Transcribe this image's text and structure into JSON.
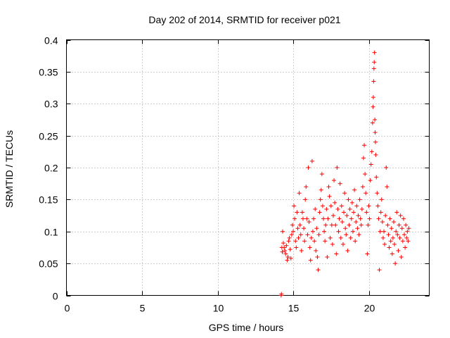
{
  "chart_data": {
    "type": "scatter",
    "title": "Day 202 of 2014, SRMTID for receiver p021",
    "xlabel": "GPS time / hours",
    "ylabel": "SRMTID / TECUs",
    "xlim": [
      0,
      24
    ],
    "ylim": [
      0,
      0.4
    ],
    "xticks": [
      0,
      5,
      10,
      15,
      20
    ],
    "xtick_labels": [
      "0",
      "5",
      "10",
      "15",
      "20"
    ],
    "yticks": [
      0,
      0.05,
      0.1,
      0.15,
      0.2,
      0.25,
      0.3,
      0.35,
      0.4
    ],
    "ytick_labels": [
      "0",
      "0.05",
      "0.1",
      "0.15",
      "0.2",
      "0.25",
      "0.3",
      "0.35",
      "0.4"
    ],
    "grid": true,
    "marker": "+",
    "series": [
      {
        "name": "p021",
        "color": "#ff0000",
        "points": [
          [
            14.2,
            0.0
          ],
          [
            14.22,
            0.002
          ],
          [
            14.25,
            0.075
          ],
          [
            14.28,
            0.068
          ],
          [
            14.3,
            0.1
          ],
          [
            14.35,
            0.082
          ],
          [
            14.4,
            0.075
          ],
          [
            14.45,
            0.07
          ],
          [
            14.5,
            0.065
          ],
          [
            14.55,
            0.078
          ],
          [
            14.6,
            0.055
          ],
          [
            14.65,
            0.06
          ],
          [
            14.7,
            0.085
          ],
          [
            14.75,
            0.09
          ],
          [
            14.8,
            0.072
          ],
          [
            14.85,
            0.058
          ],
          [
            14.9,
            0.095
          ],
          [
            14.95,
            0.11
          ],
          [
            15.0,
            0.1
          ],
          [
            15.05,
            0.14
          ],
          [
            15.1,
            0.12
          ],
          [
            15.15,
            0.085
          ],
          [
            15.2,
            0.075
          ],
          [
            15.25,
            0.13
          ],
          [
            15.3,
            0.105
          ],
          [
            15.35,
            0.09
          ],
          [
            15.4,
            0.16
          ],
          [
            15.45,
            0.11
          ],
          [
            15.5,
            0.095
          ],
          [
            15.55,
            0.07
          ],
          [
            15.6,
            0.13
          ],
          [
            15.65,
            0.12
          ],
          [
            15.7,
            0.105
          ],
          [
            15.75,
            0.085
          ],
          [
            15.8,
            0.15
          ],
          [
            15.85,
            0.17
          ],
          [
            15.9,
            0.12
          ],
          [
            15.95,
            0.095
          ],
          [
            16.0,
            0.2
          ],
          [
            16.05,
            0.115
          ],
          [
            16.1,
            0.075
          ],
          [
            16.15,
            0.055
          ],
          [
            16.2,
            0.09
          ],
          [
            16.25,
            0.21
          ],
          [
            16.3,
            0.1
          ],
          [
            16.35,
            0.12
          ],
          [
            16.4,
            0.085
          ],
          [
            16.45,
            0.135
          ],
          [
            16.5,
            0.07
          ],
          [
            16.55,
            0.105
          ],
          [
            16.6,
            0.06
          ],
          [
            16.65,
            0.04
          ],
          [
            16.7,
            0.095
          ],
          [
            16.75,
            0.13
          ],
          [
            16.8,
            0.15
          ],
          [
            16.85,
            0.165
          ],
          [
            16.9,
            0.19
          ],
          [
            16.95,
            0.14
          ],
          [
            17.0,
            0.12
          ],
          [
            17.05,
            0.1
          ],
          [
            17.1,
            0.085
          ],
          [
            17.15,
            0.11
          ],
          [
            17.2,
            0.135
          ],
          [
            17.25,
            0.06
          ],
          [
            17.3,
            0.12
          ],
          [
            17.35,
            0.17
          ],
          [
            17.4,
            0.155
          ],
          [
            17.45,
            0.09
          ],
          [
            17.5,
            0.14
          ],
          [
            17.55,
            0.11
          ],
          [
            17.6,
            0.08
          ],
          [
            17.65,
            0.125
          ],
          [
            17.7,
            0.18
          ],
          [
            17.75,
            0.145
          ],
          [
            17.8,
            0.11
          ],
          [
            17.85,
            0.065
          ],
          [
            17.9,
            0.2
          ],
          [
            17.95,
            0.135
          ],
          [
            18.0,
            0.1
          ],
          [
            18.05,
            0.12
          ],
          [
            18.1,
            0.175
          ],
          [
            18.15,
            0.09
          ],
          [
            18.2,
            0.14
          ],
          [
            18.25,
            0.115
          ],
          [
            18.3,
            0.08
          ],
          [
            18.35,
            0.13
          ],
          [
            18.4,
            0.16
          ],
          [
            18.45,
            0.105
          ],
          [
            18.5,
            0.095
          ],
          [
            18.55,
            0.125
          ],
          [
            18.6,
            0.07
          ],
          [
            18.65,
            0.15
          ],
          [
            18.7,
            0.11
          ],
          [
            18.75,
            0.135
          ],
          [
            18.8,
            0.09
          ],
          [
            18.85,
            0.12
          ],
          [
            18.9,
            0.145
          ],
          [
            18.95,
            0.1
          ],
          [
            19.0,
            0.13
          ],
          [
            19.05,
            0.165
          ],
          [
            19.1,
            0.085
          ],
          [
            19.15,
            0.115
          ],
          [
            19.2,
            0.14
          ],
          [
            19.25,
            0.105
          ],
          [
            19.3,
            0.125
          ],
          [
            19.35,
            0.095
          ],
          [
            19.4,
            0.15
          ],
          [
            19.45,
            0.12
          ],
          [
            19.5,
            0.11
          ],
          [
            19.55,
            0.135
          ],
          [
            19.6,
            0.17
          ],
          [
            19.65,
            0.215
          ],
          [
            19.7,
            0.235
          ],
          [
            19.75,
            0.19
          ],
          [
            19.8,
            0.16
          ],
          [
            19.85,
            0.13
          ],
          [
            19.9,
            0.065
          ],
          [
            19.95,
            0.11
          ],
          [
            20.0,
            0.14
          ],
          [
            20.05,
            0.12
          ],
          [
            20.1,
            0.18
          ],
          [
            20.15,
            0.205
          ],
          [
            20.2,
            0.225
          ],
          [
            20.25,
            0.27
          ],
          [
            20.28,
            0.295
          ],
          [
            20.3,
            0.31
          ],
          [
            20.32,
            0.335
          ],
          [
            20.34,
            0.355
          ],
          [
            20.36,
            0.365
          ],
          [
            20.38,
            0.38
          ],
          [
            20.4,
            0.275
          ],
          [
            20.42,
            0.255
          ],
          [
            20.44,
            0.24
          ],
          [
            20.46,
            0.22
          ],
          [
            20.5,
            0.185
          ],
          [
            20.55,
            0.16
          ],
          [
            20.6,
            0.14
          ],
          [
            20.65,
            0.12
          ],
          [
            20.7,
            0.04
          ],
          [
            20.75,
            0.1
          ],
          [
            20.8,
            0.13
          ],
          [
            20.85,
            0.15
          ],
          [
            20.9,
            0.115
          ],
          [
            20.95,
            0.09
          ],
          [
            21.0,
            0.1
          ],
          [
            21.05,
            0.08
          ],
          [
            21.1,
            0.125
          ],
          [
            21.15,
            0.2
          ],
          [
            21.2,
            0.17
          ],
          [
            21.25,
            0.11
          ],
          [
            21.3,
            0.095
          ],
          [
            21.35,
            0.075
          ],
          [
            21.4,
            0.12
          ],
          [
            21.45,
            0.085
          ],
          [
            21.5,
            0.105
          ],
          [
            21.55,
            0.065
          ],
          [
            21.6,
            0.09
          ],
          [
            21.65,
            0.115
          ],
          [
            21.7,
            0.08
          ],
          [
            21.75,
            0.05
          ],
          [
            21.8,
            0.1
          ],
          [
            21.85,
            0.13
          ],
          [
            21.9,
            0.095
          ],
          [
            21.95,
            0.07
          ],
          [
            22.0,
            0.11
          ],
          [
            22.05,
            0.09
          ],
          [
            22.1,
            0.125
          ],
          [
            22.15,
            0.06
          ],
          [
            22.2,
            0.105
          ],
          [
            22.25,
            0.085
          ],
          [
            22.3,
            0.12
          ],
          [
            22.35,
            0.095
          ],
          [
            22.4,
            0.075
          ],
          [
            22.45,
            0.11
          ],
          [
            22.5,
            0.09
          ],
          [
            22.55,
            0.1
          ],
          [
            22.6,
            0.085
          ],
          [
            22.65,
            0.105
          ]
        ]
      }
    ]
  }
}
